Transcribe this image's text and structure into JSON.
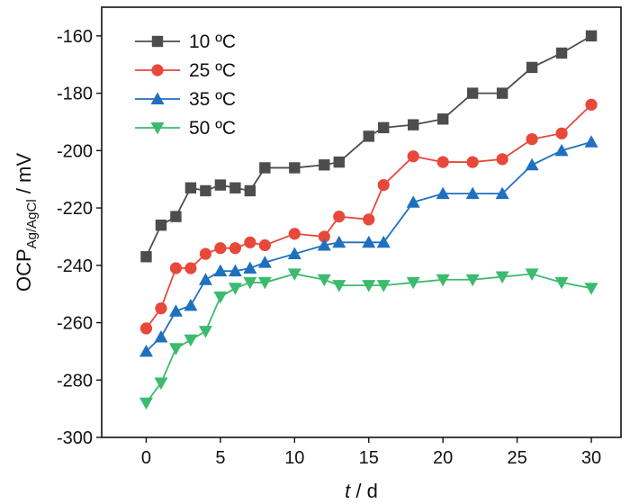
{
  "chart_data": {
    "type": "line",
    "xlabel_italic": "t",
    "xlabel_rest": " / d",
    "ylabel_main": "OCP",
    "ylabel_sub": "Ag/AgCl",
    "ylabel_rest": " / mV",
    "xlim": [
      -3,
      32
    ],
    "ylim": [
      -300,
      -150
    ],
    "xticks": [
      0,
      5,
      10,
      15,
      20,
      25,
      30
    ],
    "yticks": [
      -300,
      -280,
      -260,
      -240,
      -220,
      -200,
      -180,
      -160
    ],
    "legend_position": "top-left",
    "grid": false,
    "series": [
      {
        "name": "10 ºC",
        "color": "#4d4d4d",
        "marker": "square",
        "x": [
          0,
          1,
          2,
          3,
          4,
          5,
          6,
          7,
          8,
          10,
          12,
          13,
          15,
          16,
          18,
          20,
          22,
          24,
          26,
          28,
          30
        ],
        "y": [
          -237,
          -226,
          -223,
          -213,
          -214,
          -212,
          -213,
          -214,
          -206,
          -206,
          -205,
          -204,
          -195,
          -192,
          -191,
          -189,
          -180,
          -180,
          -171,
          -166,
          -160
        ]
      },
      {
        "name": "25 ºC",
        "color": "#e8483a",
        "marker": "circle",
        "x": [
          0,
          1,
          2,
          3,
          4,
          5,
          6,
          7,
          8,
          10,
          12,
          13,
          15,
          16,
          18,
          20,
          22,
          24,
          26,
          28,
          30
        ],
        "y": [
          -262,
          -255,
          -241,
          -241,
          -236,
          -234,
          -234,
          -232,
          -233,
          -229,
          -230,
          -223,
          -224,
          -212,
          -202,
          -204,
          -204,
          -203,
          -196,
          -194,
          -184
        ]
      },
      {
        "name": "35 ºC",
        "color": "#2070c0",
        "marker": "triangle-up",
        "x": [
          0,
          1,
          2,
          3,
          4,
          5,
          6,
          7,
          8,
          10,
          12,
          13,
          15,
          16,
          18,
          20,
          22,
          24,
          26,
          28,
          30
        ],
        "y": [
          -270,
          -265,
          -256,
          -254,
          -245,
          -242,
          -242,
          -241,
          -239,
          -236,
          -233,
          -232,
          -232,
          -232,
          -218,
          -215,
          -215,
          -215,
          -205,
          -200,
          -197
        ]
      },
      {
        "name": "50 ºC",
        "color": "#3cbb6e",
        "marker": "triangle-down",
        "x": [
          0,
          1,
          2,
          3,
          4,
          5,
          6,
          7,
          8,
          10,
          12,
          13,
          15,
          16,
          18,
          20,
          22,
          24,
          26,
          28,
          30
        ],
        "y": [
          -288,
          -281,
          -269,
          -266,
          -263,
          -251,
          -248,
          -246,
          -246,
          -243,
          -245,
          -247,
          -247,
          -247,
          -246,
          -245,
          -245,
          -244,
          -243,
          -246,
          -248
        ]
      }
    ]
  }
}
